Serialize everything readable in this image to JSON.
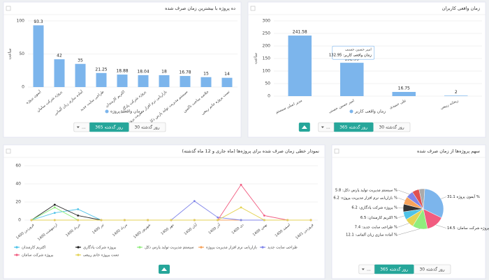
{
  "chart_data": [
    {
      "type": "bar",
      "title": "ده پروژه با بیشترین زمان صرف شده",
      "y_label": "ساعت",
      "categories": [
        "آیمون پروژه",
        "پروژه شرکت سامان",
        "آماده سازی زبان آلمانی",
        "طراحی سایت جدید",
        "اکثریم کارمندان",
        "پروژه شرکت پادگاری",
        "بازاریابی نرم افزار مدیریت پروژه",
        "سیستم مدیریت تولید پارس دکل",
        "خلاصه ساخت تاکمین",
        "تست پروژه خانم ربیعی"
      ],
      "values": [
        93.3,
        42,
        35,
        21.25,
        18.88,
        18.04,
        18,
        16.78,
        15,
        14
      ],
      "series_name": "زمان واقعی پروژه",
      "color": "#7cb5ec",
      "ylim": [
        0,
        100
      ],
      "yticks": [
        0,
        50,
        100
      ],
      "grid": true,
      "buttons": [
        "30 روز گذشته",
        "365 روز گذشته",
        "..."
      ]
    },
    {
      "type": "bar",
      "title": "زمان واقعی کاربران",
      "y_label": "ساعت",
      "categories": [
        "مدیر اصلی سیستم",
        "امیر حسین حسنی",
        "علی حمیدی",
        "ریحانه ربیعی"
      ],
      "values": [
        241.58,
        132.95,
        16.75,
        2
      ],
      "series_name": "زمان واقعی کاربر",
      "color": "#7cb5ec",
      "ylim": [
        0,
        300
      ],
      "yticks": [
        0,
        50,
        100,
        150,
        200,
        250,
        300
      ],
      "grid": true,
      "tooltip": {
        "title": "امیر حسین حسنی",
        "text": "زمان واقعی کاربر: 132.95"
      },
      "buttons": [
        "30 روز گذشته",
        "365 روز گذشته",
        "..."
      ]
    },
    {
      "type": "line",
      "title": "نمودار خطی زمان صرف شده برای پروژه‌ها (ماه جاری و 12 ماه گذشته)",
      "categories": [
        "فروردین 1400",
        "اردیبهشت 1400",
        "خرداد 1400",
        "تیر 1400",
        "مرداد 1400",
        "شهریور 1400",
        "مهر 1400",
        "آبان 1400",
        "آذر 1400",
        "دی 1400",
        "بهمن 1400",
        "اسفند 1400",
        "فروردین 1401"
      ],
      "ylim": [
        0,
        60
      ],
      "yticks": [
        0,
        20,
        40,
        60
      ],
      "grid": true,
      "series": [
        {
          "name": "اکثریم کارمندان",
          "color": "#4fc3e8",
          "values": [
            0,
            8,
            12,
            0,
            0,
            0,
            0,
            0,
            0,
            0,
            0,
            0,
            0
          ]
        },
        {
          "name": "پروژه شرکت پادگاری",
          "color": "#222222",
          "values": [
            0,
            17,
            5,
            0,
            0,
            0,
            0,
            0,
            0,
            0,
            0,
            0,
            0
          ]
        },
        {
          "name": "سیستم مدیریت تولید پارس دکل",
          "color": "#90ed7d",
          "values": [
            0,
            14,
            0,
            0,
            0,
            0,
            0,
            0,
            0,
            0,
            0,
            0,
            0
          ]
        },
        {
          "name": "بازاریابی نرم افزار مدیریت پروژه",
          "color": "#f7a35c",
          "values": [
            0,
            0,
            0,
            0,
            0,
            0,
            0,
            0,
            0,
            0,
            0,
            0,
            0
          ]
        },
        {
          "name": "طراحی سایت جدید",
          "color": "#8085e9",
          "values": [
            0,
            0,
            0,
            0,
            0,
            0,
            0,
            21,
            3,
            0,
            0,
            0,
            0
          ]
        },
        {
          "name": "پروژه شرکت سامان",
          "color": "#f15c80",
          "values": [
            0,
            0,
            0,
            0,
            0,
            0,
            0,
            0,
            0,
            39,
            5,
            0,
            0
          ]
        },
        {
          "name": "تست پروژه خانم ربیعی",
          "color": "#e4d354",
          "values": [
            0,
            0,
            0,
            0,
            0,
            0,
            0,
            0,
            0,
            14,
            0,
            0,
            0
          ]
        }
      ]
    },
    {
      "type": "pie",
      "title": "سهم پروژه‌ها از زمان صرف شده",
      "labels": [
        "آیمون پروژه 31.1 %",
        "پروژه شرکت سامان: 14.5 %",
        "آماده سازی زبان آلمانی: 12.1 %",
        "طراحی سایت جدید: 7.4 %",
        "اکثریم کارمندان: 6.5 %",
        "پروژه شرکت پادگاری: 6.2 %",
        "بازاریابی نرم افزار مدیریت پروژه: 6.2 %",
        "سیستم مدیریت تولید پارس دکل: 5.8 %",
        null,
        null
      ],
      "values": [
        31.1,
        14.5,
        12.1,
        7.4,
        6.5,
        6.2,
        6.2,
        5.8,
        5.6,
        4.6
      ],
      "colors": [
        "#7cb5ec",
        "#f15c80",
        "#90ed7d",
        "#e4d354",
        "#4fc3e8",
        "#333333",
        "#f7a35c",
        "#8085e9",
        "#e05050",
        "#aaaaaa"
      ],
      "buttons": [
        "30 روز گذشته",
        "365 روز گذشته",
        "..."
      ]
    }
  ]
}
